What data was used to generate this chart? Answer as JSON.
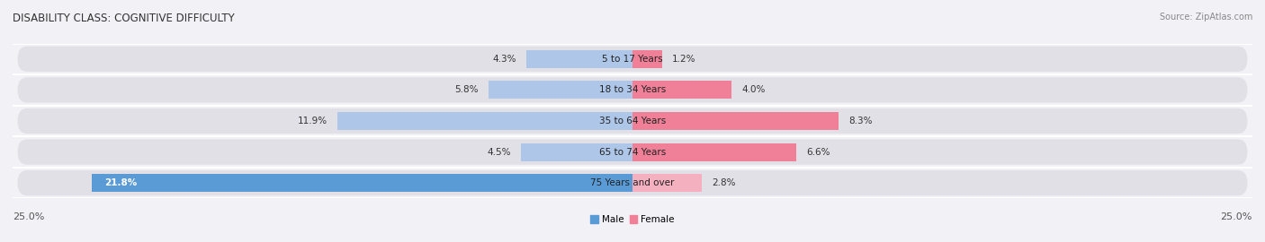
{
  "title": "DISABILITY CLASS: COGNITIVE DIFFICULTY",
  "source": "Source: ZipAtlas.com",
  "categories": [
    "5 to 17 Years",
    "18 to 34 Years",
    "35 to 64 Years",
    "65 to 74 Years",
    "75 Years and over"
  ],
  "male_values": [
    4.3,
    5.8,
    11.9,
    4.5,
    21.8
  ],
  "female_values": [
    1.2,
    4.0,
    8.3,
    6.6,
    2.8
  ],
  "male_color_light": "#aec6e8",
  "male_color_dark": "#5b9bd5",
  "female_color": "#f08098",
  "female_color_light": "#f5b0c0",
  "male_label": "Male",
  "female_label": "Female",
  "axis_max": 25.0,
  "row_bg_color": "#e0e0e6",
  "fig_bg_color": "#f2f2f6",
  "title_fontsize": 8.5,
  "label_fontsize": 7.5,
  "tick_fontsize": 8.0,
  "value_fontsize": 7.5
}
